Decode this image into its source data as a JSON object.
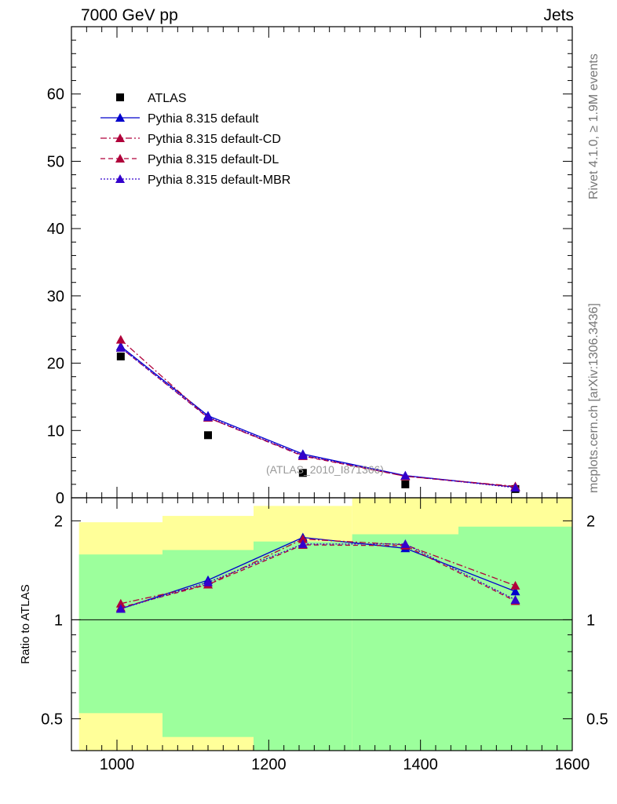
{
  "header": {
    "energy_label": "7000 GeV pp",
    "category_label": "Jets"
  },
  "side_text": {
    "rivet": "Rivet 4.1.0, ≥ 1.9M events",
    "source": "mcplots.cern.ch [arXiv:1306.3436]"
  },
  "watermark": "(ATLAS_2010_I871366)",
  "ratio_ylabel": "Ratio to ATLAS",
  "colors": {
    "blue": "#0000cc",
    "crimson": "#b0003a",
    "purple": "#3300cc",
    "band_inner": "#9cff9c",
    "band_outer": "#ffff99"
  },
  "chart_data": [
    {
      "type": "line",
      "panel": "main",
      "xlim": [
        940,
        1600
      ],
      "ylim": [
        0,
        70
      ],
      "yticks": [
        0,
        10,
        20,
        30,
        40,
        50,
        60
      ],
      "ytick_labels": [
        "0",
        "10",
        "20",
        "30",
        "40",
        "50",
        "60"
      ],
      "legend_position": "top-left",
      "series": [
        {
          "name": "ATLAS",
          "style": "square",
          "color": "#000000",
          "x": [
            1005,
            1120,
            1245,
            1380,
            1525
          ],
          "y": [
            21.0,
            9.3,
            3.7,
            2.0,
            1.3
          ]
        },
        {
          "name": "Pythia 8.315 default",
          "style": "solid",
          "color": "#0000cc",
          "x": [
            1005,
            1120,
            1245,
            1380,
            1525
          ],
          "y": [
            22.5,
            12.2,
            6.5,
            3.3,
            1.6
          ]
        },
        {
          "name": "Pythia 8.315 default-CD",
          "style": "dashdot",
          "color": "#b0003a",
          "x": [
            1005,
            1120,
            1245,
            1380,
            1525
          ],
          "y": [
            23.5,
            11.9,
            6.3,
            3.2,
            1.7
          ]
        },
        {
          "name": "Pythia 8.315 default-DL",
          "style": "dashed",
          "color": "#b0003a",
          "x": [
            1005,
            1120,
            1245,
            1380,
            1525
          ],
          "y": [
            22.3,
            11.9,
            6.2,
            3.2,
            1.6
          ]
        },
        {
          "name": "Pythia 8.315 default-MBR",
          "style": "dotted",
          "color": "#3300cc",
          "x": [
            1005,
            1120,
            1245,
            1380,
            1525
          ],
          "y": [
            22.3,
            12.0,
            6.3,
            3.3,
            1.5
          ]
        }
      ]
    },
    {
      "type": "line",
      "panel": "ratio",
      "ylabel": "Ratio to ATLAS",
      "xlim": [
        940,
        1600
      ],
      "ylim": [
        0.4,
        2.35
      ],
      "yscale": "log",
      "xticks": [
        1000,
        1200,
        1400,
        1600
      ],
      "xtick_labels": [
        "1000",
        "1200",
        "1400",
        "1600"
      ],
      "yticks": [
        0.5,
        1,
        2
      ],
      "ytick_labels": [
        "0.5",
        "1",
        "2"
      ],
      "reference_line": 1,
      "bands": [
        {
          "x0": 950,
          "x1": 1060,
          "inner": [
            0.52,
            1.58
          ],
          "outer": [
            0.36,
            1.98
          ]
        },
        {
          "x0": 1060,
          "x1": 1180,
          "inner": [
            0.44,
            1.63
          ],
          "outer": [
            0.36,
            2.07
          ]
        },
        {
          "x0": 1180,
          "x1": 1310,
          "inner": [
            0.36,
            1.73
          ],
          "outer": [
            0.36,
            2.22
          ]
        },
        {
          "x0": 1310,
          "x1": 1450,
          "inner": [
            0.36,
            1.82
          ],
          "outer": [
            0.36,
            2.35
          ]
        },
        {
          "x0": 1450,
          "x1": 1600,
          "inner": [
            0.36,
            1.92
          ],
          "outer": [
            0.36,
            2.35
          ]
        }
      ],
      "series": [
        {
          "name": "Pythia 8.315 default",
          "style": "solid",
          "color": "#0000cc",
          "x": [
            1005,
            1120,
            1245,
            1380,
            1525
          ],
          "y": [
            1.08,
            1.32,
            1.78,
            1.65,
            1.22
          ],
          "yerr": [
            0.01,
            0.01,
            0.02,
            0.03,
            0.03
          ]
        },
        {
          "name": "Pythia 8.315 default-CD",
          "style": "dashdot",
          "color": "#b0003a",
          "x": [
            1005,
            1120,
            1245,
            1380,
            1525
          ],
          "y": [
            1.12,
            1.28,
            1.76,
            1.69,
            1.27
          ],
          "yerr": [
            0.01,
            0.01,
            0.02,
            0.03,
            0.03
          ]
        },
        {
          "name": "Pythia 8.315 default-DL",
          "style": "dashed",
          "color": "#b0003a",
          "x": [
            1005,
            1120,
            1245,
            1380,
            1525
          ],
          "y": [
            1.09,
            1.28,
            1.69,
            1.68,
            1.14
          ],
          "yerr": [
            0.01,
            0.01,
            0.02,
            0.03,
            0.03
          ]
        },
        {
          "name": "Pythia 8.315 default-MBR",
          "style": "dotted",
          "color": "#3300cc",
          "x": [
            1005,
            1120,
            1245,
            1380,
            1525
          ],
          "y": [
            1.08,
            1.3,
            1.7,
            1.7,
            1.15
          ],
          "yerr": [
            0.01,
            0.01,
            0.02,
            0.03,
            0.03
          ]
        }
      ]
    }
  ]
}
